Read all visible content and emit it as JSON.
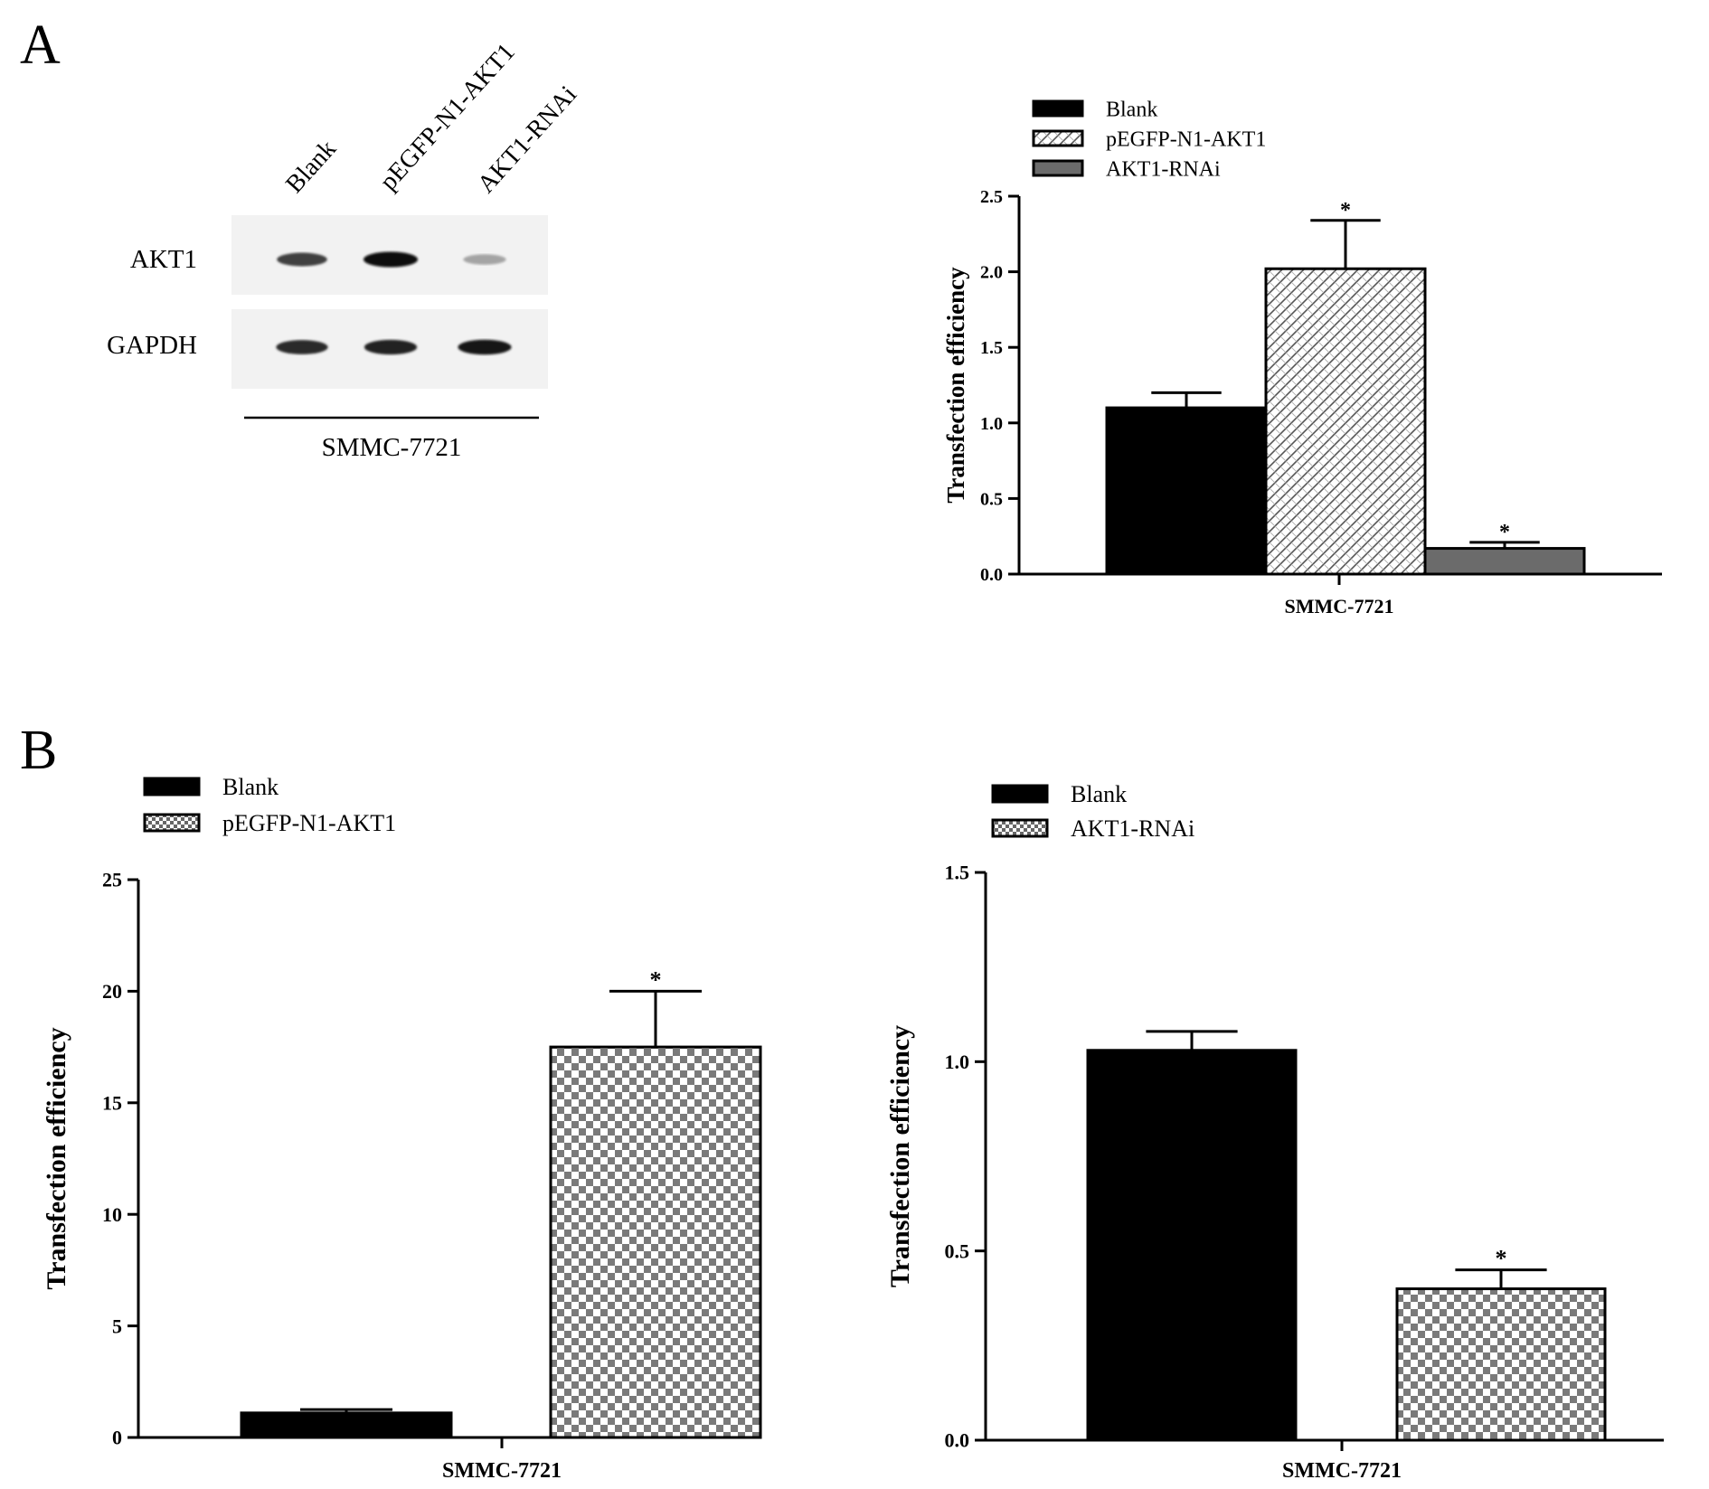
{
  "panels": {
    "a_label": "A",
    "b_label": "B"
  },
  "blot": {
    "lanes": [
      "Blank",
      "pEGFP-N1-AKT1",
      "AKT1-RNAi"
    ],
    "proteins": [
      "AKT1",
      "GAPDH"
    ],
    "cell_line": "SMMC-7721",
    "band_intensity": {
      "AKT1": [
        0.75,
        1.0,
        0.3
      ],
      "GAPDH": [
        0.85,
        0.9,
        0.95
      ]
    }
  },
  "chart_data": [
    {
      "type": "bar",
      "categories": [
        "SMMC-7721"
      ],
      "series": [
        {
          "name": "Blank",
          "values": [
            1.1
          ],
          "error": [
            0.1
          ],
          "significant": [
            false
          ]
        },
        {
          "name": "pEGFP-N1-AKT1",
          "values": [
            2.02
          ],
          "error": [
            0.32
          ],
          "significant": [
            true
          ]
        },
        {
          "name": "AKT1-RNAi",
          "values": [
            0.17
          ],
          "error": [
            0.04
          ],
          "significant": [
            true
          ]
        }
      ],
      "xlabel": "SMMC-7721",
      "ylabel": "Transfection efficiency",
      "ylim": [
        0,
        2.5
      ],
      "yticks": [
        "0.0",
        "0.5",
        "1.0",
        "1.5",
        "2.0",
        "2.5"
      ],
      "significance_mark": "*",
      "legend_position": "top-left",
      "colors": {
        "Blank": "#000000",
        "pEGFP-N1-AKT1": "hatched",
        "AKT1-RNAi": "#6b6b6b"
      }
    },
    {
      "type": "bar",
      "categories": [
        "SMMC-7721"
      ],
      "series": [
        {
          "name": "Blank",
          "values": [
            1.1
          ],
          "error": [
            0.15
          ],
          "significant": [
            false
          ]
        },
        {
          "name": "pEGFP-N1-AKT1",
          "values": [
            17.5
          ],
          "error": [
            2.5
          ],
          "significant": [
            true
          ]
        }
      ],
      "xlabel": "SMMC-7721",
      "ylabel": "Transfection efficiency",
      "ylim": [
        0,
        25
      ],
      "yticks": [
        "0",
        "5",
        "10",
        "15",
        "20",
        "25"
      ],
      "significance_mark": "*",
      "legend_position": "top-left",
      "colors": {
        "Blank": "#000000",
        "pEGFP-N1-AKT1": "checkered"
      }
    },
    {
      "type": "bar",
      "categories": [
        "SMMC-7721"
      ],
      "series": [
        {
          "name": "Blank",
          "values": [
            1.03
          ],
          "error": [
            0.05
          ],
          "significant": [
            false
          ]
        },
        {
          "name": "AKT1-RNAi",
          "values": [
            0.4
          ],
          "error": [
            0.05
          ],
          "significant": [
            true
          ]
        }
      ],
      "xlabel": "SMMC-7721",
      "ylabel": "Transfection efficiency",
      "ylim": [
        0,
        1.5
      ],
      "yticks": [
        "0.0",
        "0.5",
        "1.0",
        "1.5"
      ],
      "significance_mark": "*",
      "legend_position": "top-left",
      "colors": {
        "Blank": "#000000",
        "AKT1-RNAi": "checkered"
      }
    }
  ]
}
